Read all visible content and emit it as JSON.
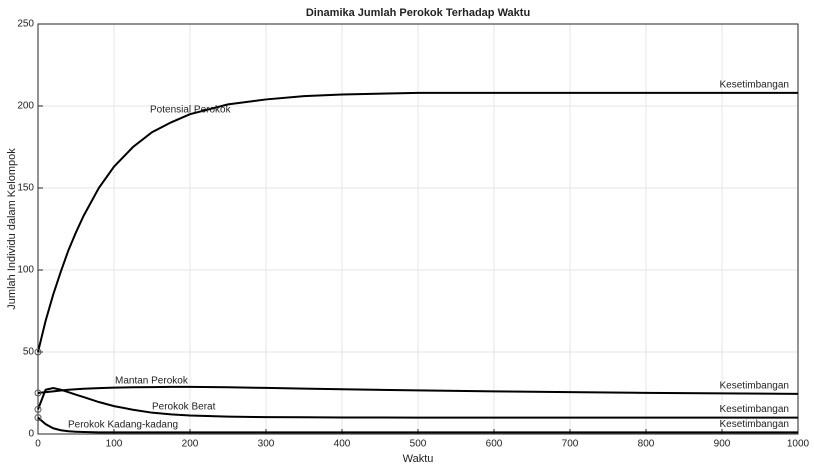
{
  "chart_data": {
    "type": "line",
    "title": "Dinamika Jumlah Perokok Terhadap Waktu",
    "x_label": "Waktu",
    "y_label": "Jumlah Individu dalam Kelompok",
    "x": [
      0,
      10,
      20,
      30,
      40,
      50,
      60,
      80,
      100,
      125,
      150,
      175,
      200,
      250,
      300,
      350,
      400,
      500,
      600,
      700,
      800,
      900,
      1000
    ],
    "series": [
      {
        "name": "Potensial Perokok",
        "color": "#000000",
        "end_label": "Kesetimbangan",
        "values": [
          50,
          69,
          85,
          99,
          112,
          123,
          133,
          150,
          163,
          175,
          184,
          190,
          195,
          201,
          204,
          206,
          207,
          208,
          208,
          208,
          208,
          208,
          208
        ]
      },
      {
        "name": "Mantan Perokok",
        "color": "#000000",
        "end_label": "Kesetimbangan",
        "values": [
          25,
          25.5,
          26,
          26.5,
          27,
          27.3,
          27.6,
          28,
          28.3,
          28.5,
          28.6,
          28.7,
          28.7,
          28.5,
          28.1,
          27.7,
          27.3,
          26.6,
          26,
          25.5,
          25.1,
          24.8,
          24.5
        ]
      },
      {
        "name": "Perokok Berat",
        "color": "#000000",
        "end_label": "Kesetimbangan",
        "values": [
          15,
          27,
          28,
          27,
          25.5,
          24,
          22.5,
          19.5,
          17,
          14.8,
          13,
          12,
          11.3,
          10.6,
          10.3,
          10.2,
          10.1,
          10,
          10,
          10,
          10,
          10,
          10
        ]
      },
      {
        "name": "Perokok Kadang-kadang",
        "color": "#000000",
        "end_label": "Kesetimbangan",
        "values": [
          10,
          6,
          3.5,
          2.3,
          1.7,
          1.4,
          1.2,
          1,
          1,
          1,
          1,
          1,
          1,
          1,
          1,
          1,
          1,
          1,
          1,
          1,
          1,
          1,
          1
        ]
      }
    ],
    "xlim": [
      0,
      1000
    ],
    "xticks": [
      0,
      100,
      200,
      300,
      400,
      500,
      600,
      700,
      800,
      900,
      1000
    ],
    "ylim": [
      0,
      250
    ],
    "yticks": [
      0,
      50,
      100,
      150,
      200,
      250
    ],
    "grid": true
  }
}
